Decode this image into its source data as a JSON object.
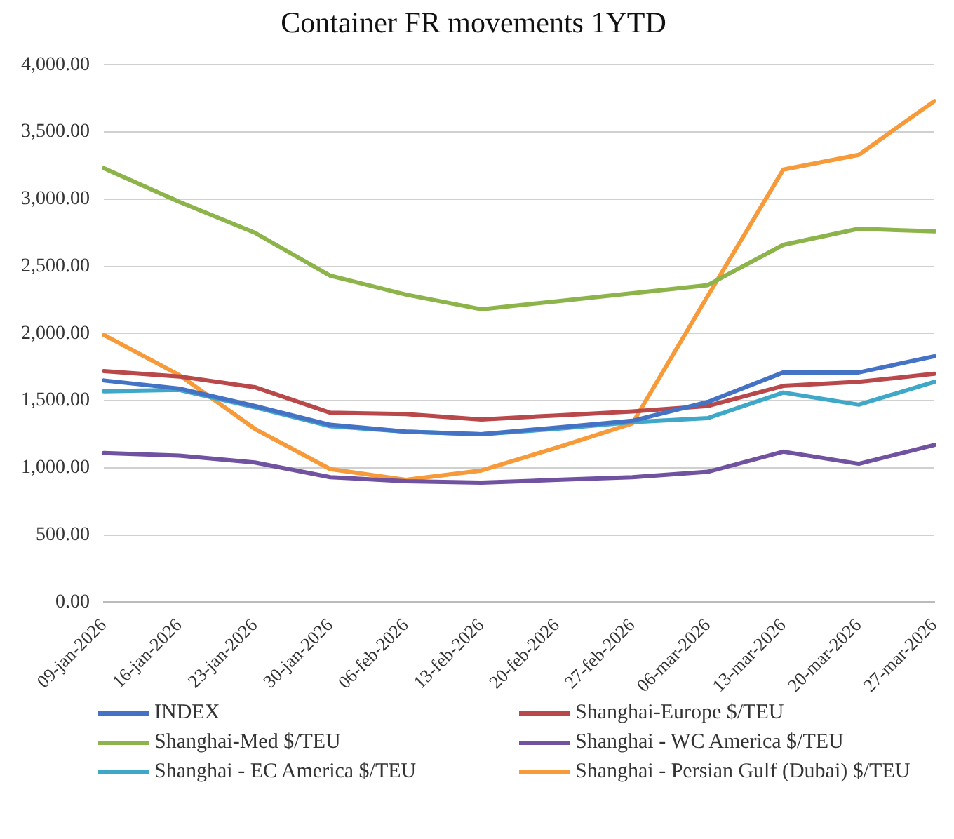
{
  "chart_data": {
    "type": "line",
    "title": "Container FR movements 1YTD",
    "categories": [
      "09-jan-2026",
      "16-jan-2026",
      "23-jan-2026",
      "30-jan-2026",
      "06-feb-2026",
      "13-feb-2026",
      "20-feb-2026",
      "27-feb-2026",
      "06-mar-2026",
      "13-mar-2026",
      "20-mar-2026",
      "27-mar-2026"
    ],
    "series": [
      {
        "name": "INDEX",
        "color": "#4472c4",
        "values": [
          1650,
          1590,
          1460,
          1320,
          1270,
          1250,
          1300,
          1350,
          1490,
          1710,
          1710,
          1830
        ]
      },
      {
        "name": "Shanghai-Europe $/TEU",
        "color": "#b8484a",
        "values": [
          1720,
          1680,
          1600,
          1410,
          1400,
          1360,
          1390,
          1420,
          1460,
          1610,
          1640,
          1700
        ]
      },
      {
        "name": "Shanghai-Med $/TEU",
        "color": "#8db44b",
        "values": [
          3230,
          2980,
          2750,
          2430,
          2290,
          2180,
          2240,
          2300,
          2360,
          2660,
          2780,
          2760
        ]
      },
      {
        "name": "Shanghai - WC America $/TEU",
        "color": "#7052a0",
        "values": [
          1110,
          1090,
          1040,
          930,
          900,
          890,
          910,
          930,
          970,
          1120,
          1030,
          1170
        ]
      },
      {
        "name": "Shanghai - EC America $/TEU",
        "color": "#3fa8c8",
        "values": [
          1570,
          1580,
          1450,
          1310,
          1270,
          1250,
          1290,
          1340,
          1370,
          1560,
          1470,
          1640
        ]
      },
      {
        "name": "Shanghai - Persian Gulf (Dubai) $/TEU",
        "color": "#f79a3a",
        "values": [
          1990,
          1690,
          1290,
          990,
          910,
          980,
          1150,
          1330,
          2280,
          3220,
          3330,
          3730
        ]
      }
    ],
    "ylim": [
      0,
      4000
    ],
    "yticks": [
      {
        "value": 0,
        "label": "0.00"
      },
      {
        "value": 500,
        "label": "500.00"
      },
      {
        "value": 1000,
        "label": "1,000.00"
      },
      {
        "value": 1500,
        "label": "1,500.00"
      },
      {
        "value": 2000,
        "label": "2,000.00"
      },
      {
        "value": 2500,
        "label": "2,500.00"
      },
      {
        "value": 3000,
        "label": "3,000.00"
      },
      {
        "value": 3500,
        "label": "3,500.00"
      },
      {
        "value": 4000,
        "label": "4,000.00"
      }
    ],
    "grid": "y",
    "legend": "bottom",
    "marker": "none",
    "line_style": "solid"
  }
}
